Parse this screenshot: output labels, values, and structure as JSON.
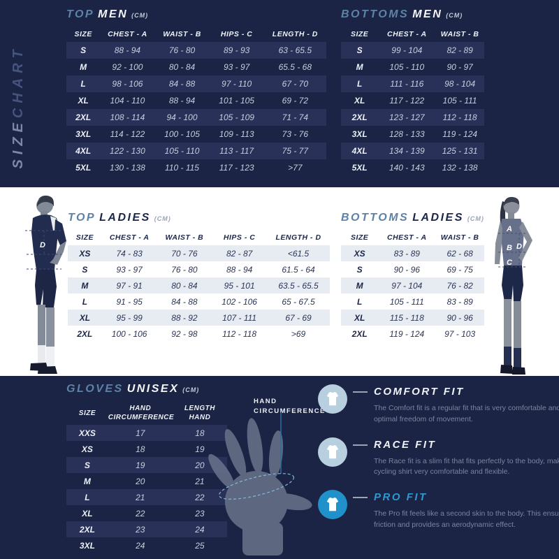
{
  "colors": {
    "navy_background": "#1b2444",
    "dark_row_stripe": "#2a3158",
    "white_band": "#ffffff",
    "light_row_stripe": "#e7ebf2",
    "accent_steel_blue": "#5d82a8",
    "bright_blue": "#2191cb",
    "light_circle_blue": "#b8cfdf",
    "description_gray": "#7b849f"
  },
  "sidebar_label": {
    "part1": "SIZE",
    "part2": "CHART"
  },
  "tables": {
    "top_men": {
      "accent": "TOP",
      "main": "MEN",
      "unit": "(CM)",
      "headers": [
        "SIZE",
        "CHEST - A",
        "WAIST - B",
        "HIPS - C",
        "LENGTH - D"
      ],
      "rows": [
        [
          "S",
          "88 - 94",
          "76 - 80",
          "89 - 93",
          "63 - 65.5"
        ],
        [
          "M",
          "92 - 100",
          "80 - 84",
          "93 - 97",
          "65.5 - 68"
        ],
        [
          "L",
          "98 - 106",
          "84 - 88",
          "97 - 110",
          "67 - 70"
        ],
        [
          "XL",
          "104 - 110",
          "88 - 94",
          "101 - 105",
          "69 - 72"
        ],
        [
          "2XL",
          "108 - 114",
          "94 - 100",
          "105 - 109",
          "71 - 74"
        ],
        [
          "3XL",
          "114 - 122",
          "100 - 105",
          "109 - 113",
          "73 - 76"
        ],
        [
          "4XL",
          "122 - 130",
          "105 - 110",
          "113 - 117",
          "75 - 77"
        ],
        [
          "5XL",
          "130 - 138",
          "110 - 115",
          "117 - 123",
          ">77"
        ]
      ]
    },
    "bottoms_men": {
      "accent": "BOTTOMS",
      "main": "MEN",
      "unit": "(CM)",
      "headers": [
        "SIZE",
        "CHEST - A",
        "WAIST - B"
      ],
      "rows": [
        [
          "S",
          "99 - 104",
          "82 - 89"
        ],
        [
          "M",
          "105 - 110",
          "90 - 97"
        ],
        [
          "L",
          "111 - 116",
          "98 - 104"
        ],
        [
          "XL",
          "117 - 122",
          "105 - 111"
        ],
        [
          "2XL",
          "123 - 127",
          "112 - 118"
        ],
        [
          "3XL",
          "128 - 133",
          "119 - 124"
        ],
        [
          "4XL",
          "134 - 139",
          "125 - 131"
        ],
        [
          "5XL",
          "140 - 143",
          "132 - 138"
        ]
      ]
    },
    "top_ladies": {
      "accent": "TOP",
      "main": "LADIES",
      "unit": "(CM)",
      "headers": [
        "SIZE",
        "CHEST - A",
        "WAIST - B",
        "HIPS - C",
        "LENGTH - D"
      ],
      "rows": [
        [
          "XS",
          "74 - 83",
          "70 - 76",
          "82 - 87",
          "<61.5"
        ],
        [
          "S",
          "93 - 97",
          "76 - 80",
          "88 - 94",
          "61.5 - 64"
        ],
        [
          "M",
          "97 - 91",
          "80 - 84",
          "95 - 101",
          "63.5 - 65.5"
        ],
        [
          "L",
          "91 - 95",
          "84 - 88",
          "102 - 106",
          "65 - 67.5"
        ],
        [
          "XL",
          "95 - 99",
          "88 - 92",
          "107 - 111",
          "67 - 69"
        ],
        [
          "2XL",
          "100 - 106",
          "92 - 98",
          "112 - 118",
          ">69"
        ]
      ]
    },
    "bottoms_ladies": {
      "accent": "BOTTOMS",
      "main": "LADIES",
      "unit": "(CM)",
      "headers": [
        "SIZE",
        "CHEST - A",
        "WAIST - B"
      ],
      "rows": [
        [
          "XS",
          "83 - 89",
          "62 - 68"
        ],
        [
          "S",
          "90 - 96",
          "69 - 75"
        ],
        [
          "M",
          "97 - 104",
          "76 - 82"
        ],
        [
          "L",
          "105 - 111",
          "83 - 89"
        ],
        [
          "XL",
          "115 - 118",
          "90 - 96"
        ],
        [
          "2XL",
          "119 - 124",
          "97 - 103"
        ]
      ]
    },
    "gloves": {
      "accent": "GLOVES",
      "main": "UNISEX",
      "unit": "(CM)",
      "headers": [
        "SIZE",
        "HAND\nCIRCUMFERENCE",
        "LENGTH\nHAND"
      ],
      "rows": [
        [
          "XXS",
          "17",
          "18"
        ],
        [
          "XS",
          "18",
          "19"
        ],
        [
          "S",
          "19",
          "20"
        ],
        [
          "M",
          "20",
          "21"
        ],
        [
          "L",
          "21",
          "22"
        ],
        [
          "XL",
          "22",
          "23"
        ],
        [
          "2XL",
          "23",
          "24"
        ],
        [
          "3XL",
          "24",
          "25"
        ]
      ]
    }
  },
  "figures": {
    "man": {
      "letters": {
        "a": "A",
        "b": "B",
        "c": "C",
        "d": "D"
      }
    },
    "woman": {
      "letters": {
        "a": "A",
        "b": "B",
        "c": "C",
        "d": "D"
      }
    }
  },
  "hand_diagram": {
    "label": "HAND\nCIRCUMFERENCE"
  },
  "fits": [
    {
      "title": "COMFORT FIT",
      "description": "The Comfort fit is a regular fit that is very comfortable and offers you optimal freedom of movement."
    },
    {
      "title": "RACE FIT",
      "description": "The Race fit is a slim fit that fits perfectly to the body, making the cycling shirt very comfortable and flexible."
    },
    {
      "title": "PRO FIT",
      "description": "The Pro fit feels like a second skin to the body. This ensures minimal friction and provides an aerodynamic effect."
    }
  ]
}
